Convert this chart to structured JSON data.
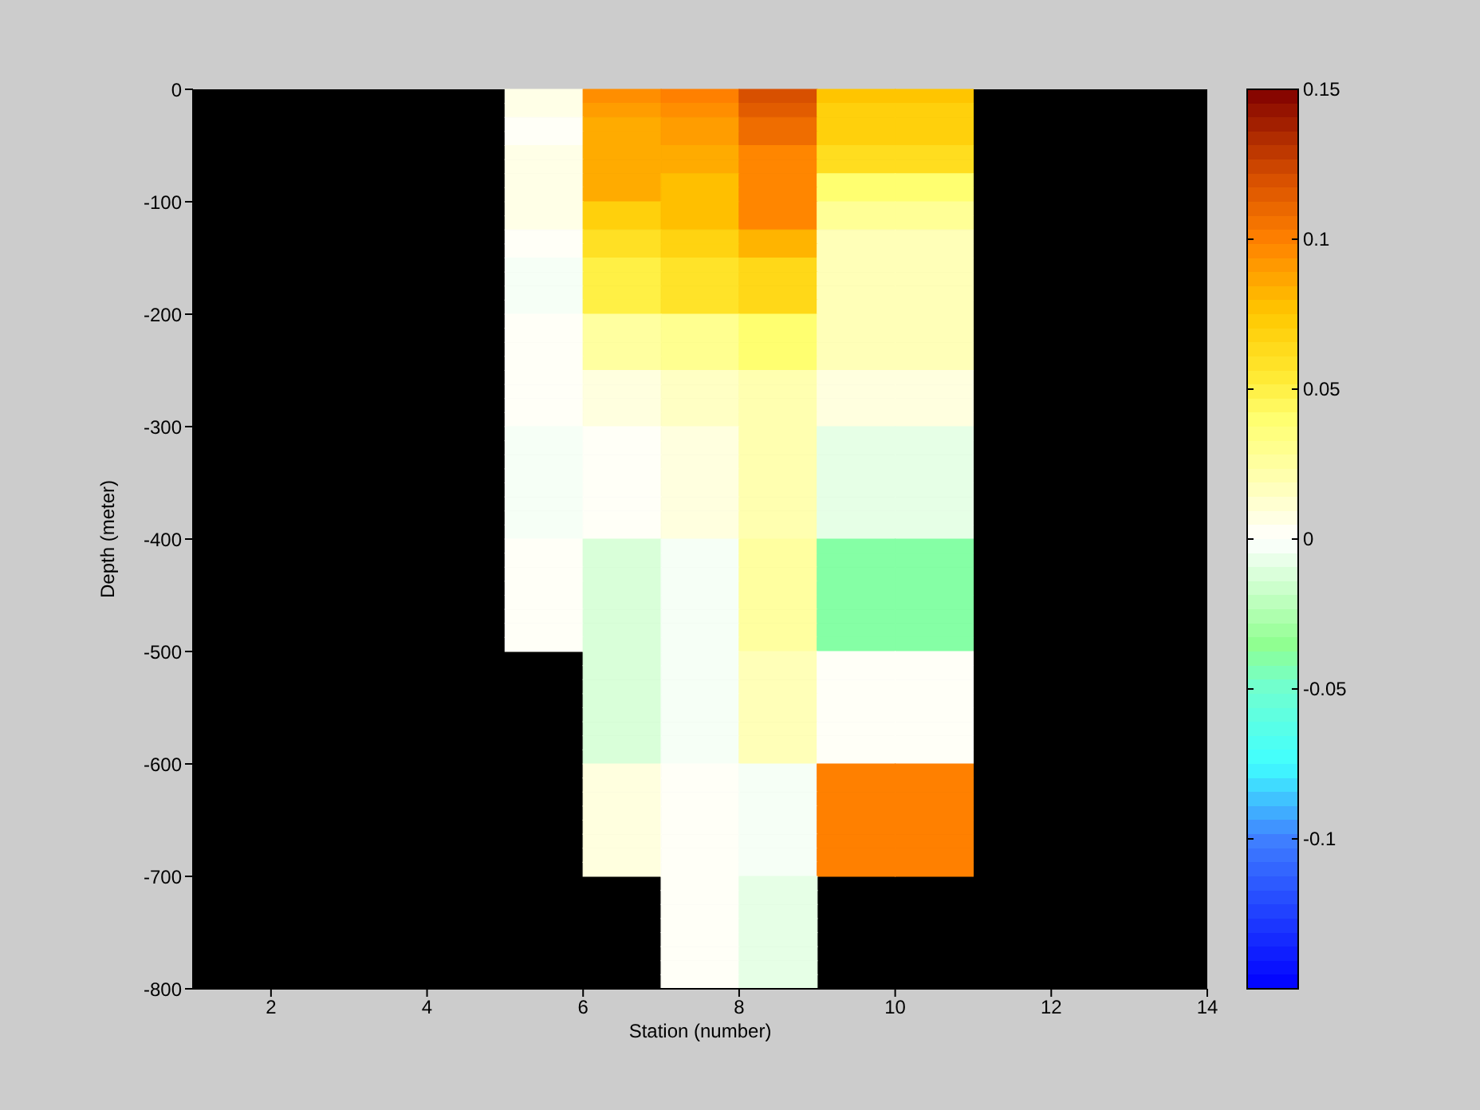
{
  "chart_data": {
    "type": "heatmap",
    "xlabel": "Station (number)",
    "ylabel": "Depth (meter)",
    "xlim": [
      1,
      14
    ],
    "xticks": [
      2,
      4,
      6,
      8,
      10,
      12,
      14
    ],
    "ylim": [
      -800,
      0
    ],
    "yticks": [
      0,
      -100,
      -200,
      -300,
      -400,
      -500,
      -600,
      -700,
      -800
    ],
    "clim": [
      -0.15,
      0.15
    ],
    "cticks": [
      -0.1,
      -0.05,
      0,
      0.05,
      0.1,
      0.15
    ],
    "x": [
      5.5,
      6.5,
      7.5,
      8.5,
      9.5,
      10.5
    ],
    "y": [
      -6.25,
      -18.75,
      -31.25,
      -43.75,
      -56.25,
      -68.75,
      -81.25,
      -93.75,
      -106.25,
      -118.75,
      -131.25,
      -143.75,
      -156.25,
      -168.75,
      -181.25,
      -193.75,
      -206.25,
      -218.75,
      -231.25,
      -243.75,
      -256.25,
      -268.75,
      -281.25,
      -293.75,
      -306.25,
      -318.75,
      -331.25,
      -343.75,
      -356.25,
      -368.75,
      -381.25,
      -393.75,
      -406.25,
      -418.75,
      -431.25,
      -443.75,
      -456.25,
      -468.75,
      -481.25,
      -493.75,
      -506.25,
      -518.75,
      -531.25,
      -543.75,
      -556.25,
      -568.75,
      -581.25,
      -593.75,
      -606.25,
      -618.75,
      -631.25,
      -643.75,
      -656.25,
      -668.75,
      -681.25,
      -693.75,
      -706.25,
      -718.75,
      -731.25,
      -743.75,
      -756.25,
      -768.75,
      -781.25,
      -793.75
    ],
    "cells": [
      [
        0.006,
        0.095,
        0.1,
        0.12,
        0.076,
        0.076
      ],
      [
        0.006,
        0.09,
        0.095,
        0.115,
        0.07,
        0.07
      ],
      [
        0.002,
        0.085,
        0.09,
        0.108,
        0.07,
        0.07
      ],
      [
        0.002,
        0.085,
        0.09,
        0.108,
        0.07,
        0.07
      ],
      [
        0.006,
        0.085,
        0.085,
        0.098,
        0.062,
        0.062
      ],
      [
        0.006,
        0.085,
        0.085,
        0.098,
        0.062,
        0.062
      ],
      [
        0.006,
        0.085,
        0.078,
        0.098,
        0.04,
        0.04
      ],
      [
        0.006,
        0.085,
        0.078,
        0.098,
        0.04,
        0.04
      ],
      [
        0.006,
        0.07,
        0.078,
        0.098,
        0.028,
        0.028
      ],
      [
        0.006,
        0.07,
        0.078,
        0.098,
        0.028,
        0.028
      ],
      [
        0.002,
        0.06,
        0.068,
        0.082,
        0.018,
        0.018
      ],
      [
        0.002,
        0.06,
        0.068,
        0.082,
        0.018,
        0.018
      ],
      [
        -0.003,
        0.05,
        0.058,
        0.065,
        0.018,
        0.018
      ],
      [
        -0.003,
        0.05,
        0.058,
        0.065,
        0.018,
        0.018
      ],
      [
        -0.003,
        0.05,
        0.058,
        0.065,
        0.018,
        0.018
      ],
      [
        -0.003,
        0.05,
        0.058,
        0.065,
        0.018,
        0.018
      ],
      [
        0.002,
        0.025,
        0.03,
        0.04,
        0.018,
        0.018
      ],
      [
        0.002,
        0.025,
        0.03,
        0.04,
        0.018,
        0.018
      ],
      [
        0.002,
        0.025,
        0.03,
        0.04,
        0.018,
        0.018
      ],
      [
        0.002,
        0.025,
        0.03,
        0.04,
        0.018,
        0.018
      ],
      [
        0.002,
        0.008,
        0.015,
        0.02,
        0.008,
        0.008
      ],
      [
        0.002,
        0.008,
        0.015,
        0.02,
        0.008,
        0.008
      ],
      [
        0.002,
        0.008,
        0.015,
        0.02,
        0.008,
        0.008
      ],
      [
        0.002,
        0.008,
        0.015,
        0.02,
        0.008,
        0.008
      ],
      [
        -0.003,
        0.002,
        0.008,
        0.02,
        -0.008,
        -0.008
      ],
      [
        -0.003,
        0.002,
        0.008,
        0.02,
        -0.008,
        -0.008
      ],
      [
        -0.003,
        0.002,
        0.008,
        0.02,
        -0.008,
        -0.008
      ],
      [
        -0.003,
        0.002,
        0.008,
        0.02,
        -0.008,
        -0.008
      ],
      [
        -0.003,
        0.002,
        0.008,
        0.02,
        -0.008,
        -0.008
      ],
      [
        -0.003,
        0.002,
        0.008,
        0.02,
        -0.008,
        -0.008
      ],
      [
        -0.003,
        0.002,
        0.008,
        0.02,
        -0.008,
        -0.008
      ],
      [
        -0.003,
        0.002,
        0.008,
        0.02,
        -0.008,
        -0.008
      ],
      [
        0.002,
        -0.012,
        -0.003,
        0.025,
        -0.04,
        -0.04
      ],
      [
        0.002,
        -0.012,
        -0.003,
        0.025,
        -0.04,
        -0.04
      ],
      [
        0.002,
        -0.012,
        -0.003,
        0.025,
        -0.04,
        -0.04
      ],
      [
        0.002,
        -0.012,
        -0.003,
        0.025,
        -0.04,
        -0.04
      ],
      [
        0.002,
        -0.012,
        -0.003,
        0.025,
        -0.04,
        -0.04
      ],
      [
        0.002,
        -0.012,
        -0.003,
        0.025,
        -0.04,
        -0.04
      ],
      [
        0.002,
        -0.012,
        -0.003,
        0.025,
        -0.04,
        -0.04
      ],
      [
        0.002,
        -0.012,
        -0.003,
        0.025,
        -0.04,
        -0.04
      ],
      [
        null,
        -0.012,
        -0.003,
        0.018,
        0.002,
        0.002
      ],
      [
        null,
        -0.012,
        -0.003,
        0.018,
        0.002,
        0.002
      ],
      [
        null,
        -0.012,
        -0.003,
        0.018,
        0.002,
        0.002
      ],
      [
        null,
        -0.012,
        -0.003,
        0.018,
        0.002,
        0.002
      ],
      [
        null,
        -0.012,
        -0.003,
        0.018,
        0.002,
        0.002
      ],
      [
        null,
        -0.012,
        -0.003,
        0.018,
        0.002,
        0.002
      ],
      [
        null,
        -0.012,
        -0.003,
        0.018,
        0.002,
        0.002
      ],
      [
        null,
        -0.012,
        -0.003,
        0.018,
        0.002,
        0.002
      ],
      [
        null,
        0.008,
        0.002,
        -0.003,
        0.1,
        0.1
      ],
      [
        null,
        0.008,
        0.002,
        -0.003,
        0.1,
        0.1
      ],
      [
        null,
        0.008,
        0.002,
        -0.003,
        0.1,
        0.1
      ],
      [
        null,
        0.008,
        0.002,
        -0.003,
        0.1,
        0.1
      ],
      [
        null,
        0.008,
        0.002,
        -0.003,
        0.1,
        0.1
      ],
      [
        null,
        0.008,
        0.002,
        -0.003,
        0.1,
        0.1
      ],
      [
        null,
        0.008,
        0.002,
        -0.003,
        0.1,
        0.1
      ],
      [
        null,
        0.008,
        0.002,
        -0.003,
        0.1,
        0.1
      ],
      [
        null,
        null,
        0.002,
        -0.008,
        null,
        null
      ],
      [
        null,
        null,
        0.002,
        -0.008,
        null,
        null
      ],
      [
        null,
        null,
        0.002,
        -0.008,
        null,
        null
      ],
      [
        null,
        null,
        0.002,
        -0.008,
        null,
        null
      ],
      [
        null,
        null,
        0.002,
        -0.008,
        null,
        null
      ],
      [
        null,
        null,
        0.002,
        -0.008,
        null,
        null
      ],
      [
        null,
        null,
        0.002,
        -0.008,
        null,
        null
      ],
      [
        null,
        null,
        0.002,
        -0.008,
        null,
        null
      ]
    ]
  }
}
